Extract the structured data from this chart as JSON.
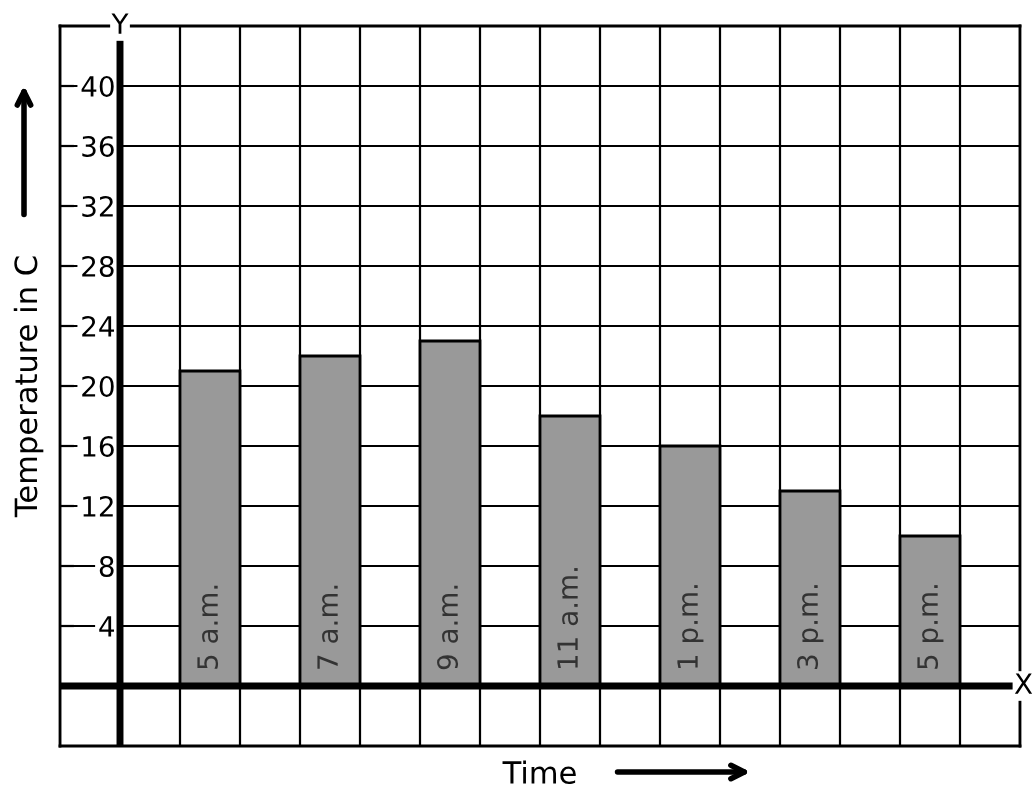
{
  "chart_data": {
    "type": "bar",
    "xlabel": "Time",
    "ylabel": "Temperature in C",
    "categories": [
      "5 a.m.",
      "7 a.m.",
      "9 a.m.",
      "11 a.m.",
      "1 p.m.",
      "3 p.m.",
      "5 p.m."
    ],
    "values": [
      21,
      22,
      23,
      18,
      16,
      13,
      10
    ],
    "color": "#999999",
    "ylim": [
      -4,
      44
    ],
    "yticks": [
      4,
      8,
      12,
      16,
      20,
      24,
      28,
      32,
      36,
      40
    ],
    "grid": true,
    "annotations": [
      "Y",
      "X"
    ]
  }
}
